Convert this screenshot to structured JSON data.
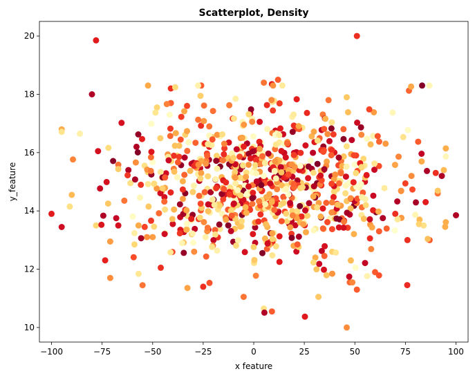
{
  "chart_data": {
    "type": "scatter",
    "title": "Scatterplot, Density",
    "xlabel": "x feature",
    "ylabel": "y_feature",
    "xlim": [
      -106,
      106
    ],
    "ylim": [
      9.5,
      20.5
    ],
    "xticks": [
      -100,
      -75,
      -50,
      -25,
      0,
      25,
      50,
      75,
      100
    ],
    "yticks": [
      10,
      12,
      14,
      16,
      18,
      20
    ],
    "grid": false,
    "legend": "none",
    "colormap": "YlOrRd",
    "color_meaning": "point density (0 = low, 1 = high)",
    "color_stops": [
      "#ffffcc",
      "#ffeda0",
      "#fed976",
      "#feb24c",
      "#fd8d3c",
      "#fc4e2a",
      "#e31a1c",
      "#bd0026",
      "#800026"
    ],
    "num_points": 900,
    "distribution": {
      "x_mean": 5,
      "x_std": 33,
      "y_mean": 14.9,
      "y_std": 1.35
    },
    "points": [
      [
        -100,
        13.9,
        0.75
      ],
      [
        -90,
        14.55,
        0.35
      ],
      [
        -91,
        14.15,
        0.2
      ],
      [
        -86,
        16.65,
        0.1
      ],
      [
        -78,
        19.85,
        0.75
      ],
      [
        -80,
        18.0,
        0.9
      ],
      [
        -77,
        16.05,
        0.8
      ],
      [
        -78,
        13.5,
        0.25
      ],
      [
        -72,
        14.25,
        0.3
      ],
      [
        -71,
        11.7,
        0.5
      ],
      [
        -71,
        12.95,
        0.45
      ],
      [
        -68,
        13.75,
        0.85
      ],
      [
        -67,
        13.5,
        0.8
      ],
      [
        -64,
        14.35,
        0.55
      ],
      [
        -62,
        15.4,
        0.9
      ],
      [
        -61,
        14.95,
        0.2
      ],
      [
        -59,
        12.85,
        0.25
      ],
      [
        -58,
        16.2,
        0.9
      ],
      [
        -57,
        13.5,
        0.4
      ],
      [
        -55,
        11.45,
        0.55
      ],
      [
        -54,
        15.55,
        0.2
      ],
      [
        -52,
        14.15,
        0.3
      ],
      [
        -50,
        13.1,
        0.45
      ],
      [
        -46,
        12.05,
        0.7
      ],
      [
        -41,
        18.2,
        0.7
      ],
      [
        -41,
        17.7,
        0.6
      ],
      [
        -33,
        17.6,
        0.65
      ],
      [
        -26,
        18.3,
        0.6
      ],
      [
        -22,
        16.9,
        0.55
      ],
      [
        -25,
        11.4,
        0.7
      ],
      [
        -22,
        16.2,
        0.75
      ],
      [
        5,
        18.4,
        0.55
      ],
      [
        9,
        18.35,
        0.75
      ],
      [
        12,
        18.5,
        0.6
      ],
      [
        37,
        17.8,
        0.55
      ],
      [
        46,
        17.9,
        0.3
      ],
      [
        51,
        20.0,
        0.7
      ],
      [
        51,
        11.3,
        0.6
      ],
      [
        46,
        10.0,
        0.5
      ],
      [
        9,
        10.55,
        0.6
      ],
      [
        5,
        10.65,
        0.2
      ],
      [
        -5,
        11.05,
        0.55
      ],
      [
        32,
        11.05,
        0.3
      ],
      [
        55,
        15.0,
        0.8
      ],
      [
        62,
        13.3,
        0.6
      ],
      [
        70,
        13.9,
        0.7
      ],
      [
        76,
        13.0,
        0.7
      ],
      [
        78,
        15.2,
        0.5
      ],
      [
        82,
        13.7,
        0.35
      ],
      [
        84,
        13.5,
        0.2
      ],
      [
        85,
        14.3,
        0.75
      ],
      [
        87,
        13.0,
        0.6
      ],
      [
        90,
        15.3,
        0.7
      ],
      [
        91,
        14.6,
        0.55
      ],
      [
        93,
        15.2,
        0.9
      ],
      [
        94,
        15.4,
        0.35
      ],
      [
        100,
        13.85,
        0.9
      ],
      [
        48,
        12.3,
        0.35
      ],
      [
        60,
        11.9,
        0.6
      ]
    ]
  }
}
